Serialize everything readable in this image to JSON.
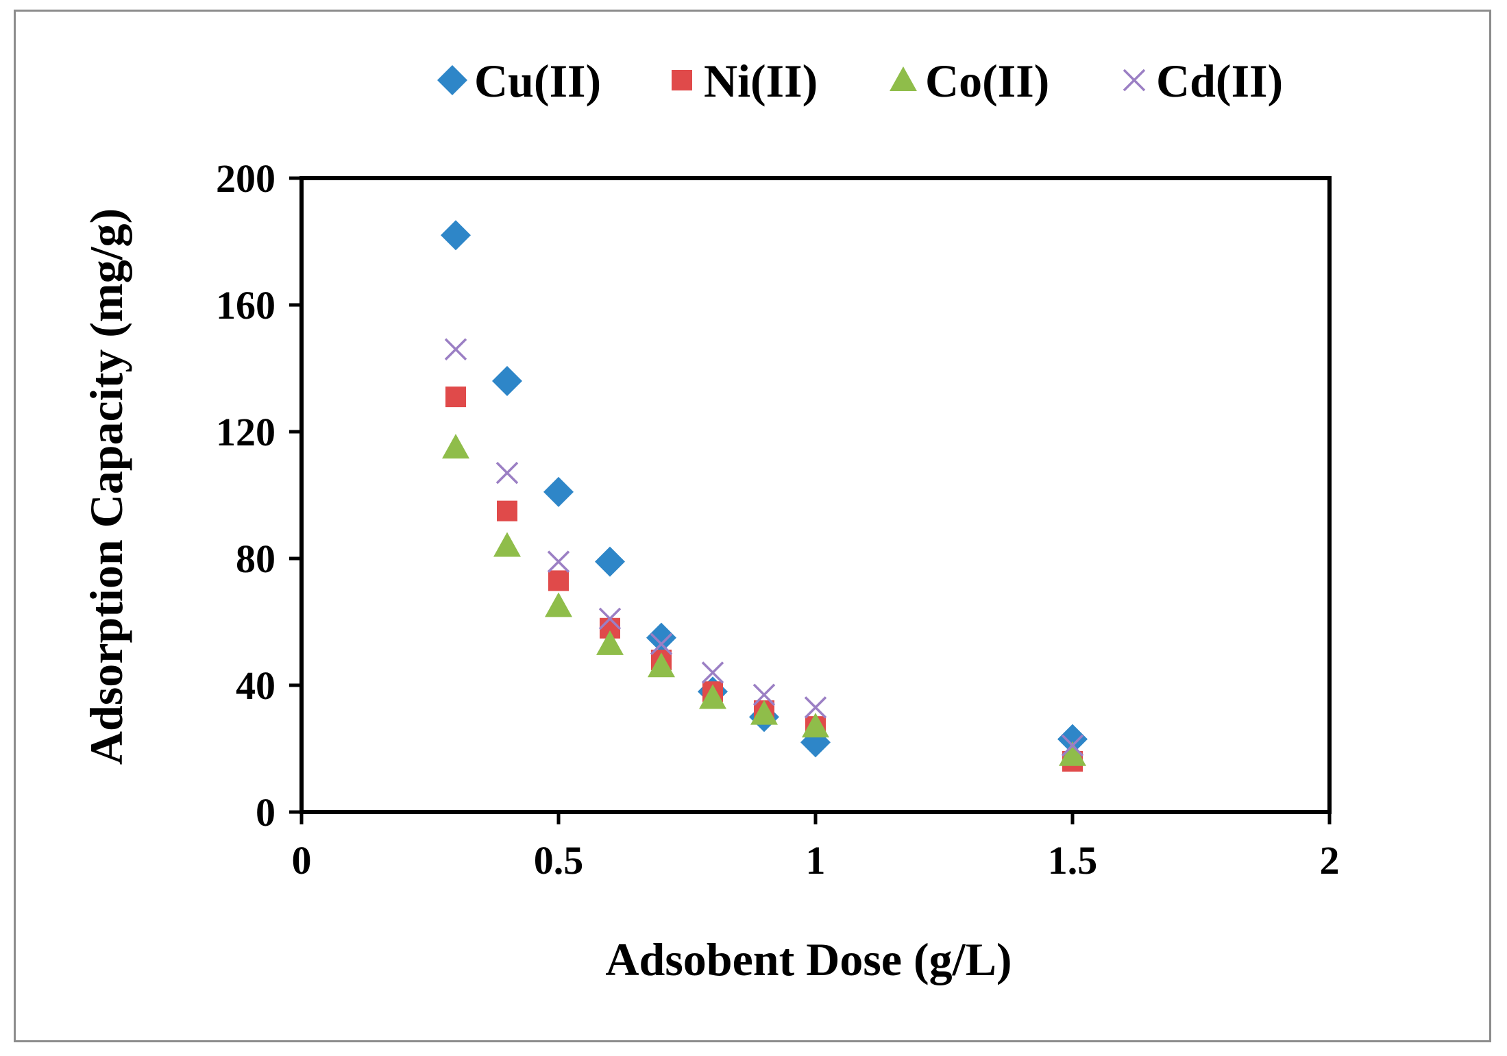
{
  "chart_data": {
    "type": "scatter",
    "title": "",
    "xlabel": "Adsobent  Dose (g/L)",
    "ylabel": "Adsorption Capacity (mg/g)",
    "xlim": [
      0,
      2
    ],
    "ylim": [
      0,
      200
    ],
    "xticks": [
      0,
      0.5,
      1,
      1.5,
      2
    ],
    "xtick_labels": [
      "0",
      "0.5",
      "1",
      "1.5",
      "2"
    ],
    "yticks": [
      0,
      40,
      80,
      120,
      160,
      200
    ],
    "ytick_labels": [
      "0",
      "40",
      "80",
      "120",
      "160",
      "200"
    ],
    "grid": false,
    "legend_position": "top",
    "series": [
      {
        "name": "Cu(II)",
        "marker": "diamond",
        "color": "#2e86c8",
        "x": [
          0.3,
          0.4,
          0.5,
          0.6,
          0.7,
          0.8,
          0.9,
          1.0,
          1.5
        ],
        "y": [
          182,
          136,
          101,
          79,
          55,
          38,
          30,
          22,
          23
        ]
      },
      {
        "name": "Ni(II)",
        "marker": "square",
        "color": "#e04a4a",
        "x": [
          0.3,
          0.4,
          0.5,
          0.6,
          0.7,
          0.8,
          0.9,
          1.0,
          1.5
        ],
        "y": [
          131,
          95,
          73,
          58,
          48,
          38,
          32,
          27,
          16
        ]
      },
      {
        "name": "Co(II)",
        "marker": "triangle",
        "color": "#8fbd4a",
        "x": [
          0.3,
          0.4,
          0.5,
          0.6,
          0.7,
          0.8,
          0.9,
          1.0,
          1.5
        ],
        "y": [
          115,
          84,
          65,
          53,
          46,
          36,
          31,
          27,
          18
        ]
      },
      {
        "name": "Cd(II)",
        "marker": "cross",
        "color": "#9b7fc4",
        "x": [
          0.3,
          0.4,
          0.5,
          0.6,
          0.7,
          0.8,
          0.9,
          1.0,
          1.5
        ],
        "y": [
          146,
          107,
          79,
          61,
          53,
          44,
          37,
          33,
          21
        ]
      }
    ]
  }
}
